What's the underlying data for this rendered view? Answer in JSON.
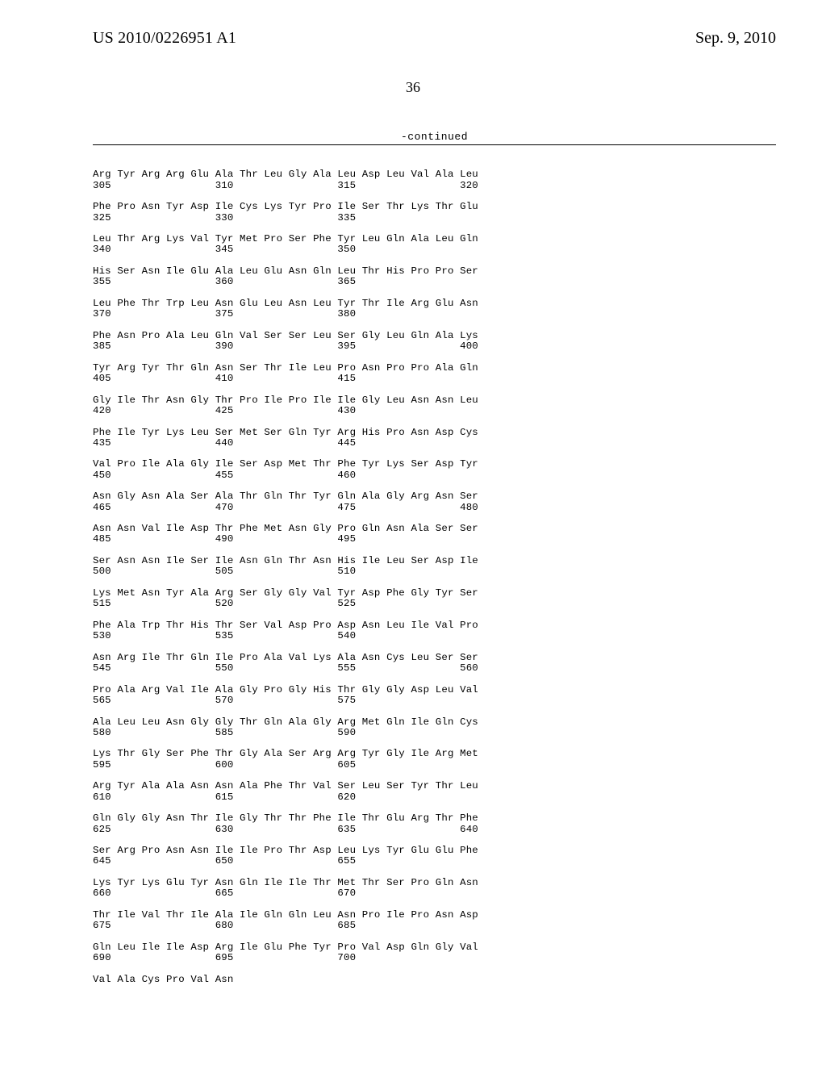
{
  "header": {
    "left": "US 2010/0226951 A1",
    "right": "Sep. 9, 2010"
  },
  "page_number": "36",
  "continued_label": "-continued",
  "sequence_text": "Arg Tyr Arg Arg Glu Ala Thr Leu Gly Ala Leu Asp Leu Val Ala Leu\n305                 310                 315                 320\n\nPhe Pro Asn Tyr Asp Ile Cys Lys Tyr Pro Ile Ser Thr Lys Thr Glu\n325                 330                 335\n\nLeu Thr Arg Lys Val Tyr Met Pro Ser Phe Tyr Leu Gln Ala Leu Gln\n340                 345                 350\n\nHis Ser Asn Ile Glu Ala Leu Glu Asn Gln Leu Thr His Pro Pro Ser\n355                 360                 365\n\nLeu Phe Thr Trp Leu Asn Glu Leu Asn Leu Tyr Thr Ile Arg Glu Asn\n370                 375                 380\n\nPhe Asn Pro Ala Leu Gln Val Ser Ser Leu Ser Gly Leu Gln Ala Lys\n385                 390                 395                 400\n\nTyr Arg Tyr Thr Gln Asn Ser Thr Ile Leu Pro Asn Pro Pro Ala Gln\n405                 410                 415\n\nGly Ile Thr Asn Gly Thr Pro Ile Pro Ile Ile Gly Leu Asn Asn Leu\n420                 425                 430\n\nPhe Ile Tyr Lys Leu Ser Met Ser Gln Tyr Arg His Pro Asn Asp Cys\n435                 440                 445\n\nVal Pro Ile Ala Gly Ile Ser Asp Met Thr Phe Tyr Lys Ser Asp Tyr\n450                 455                 460\n\nAsn Gly Asn Ala Ser Ala Thr Gln Thr Tyr Gln Ala Gly Arg Asn Ser\n465                 470                 475                 480\n\nAsn Asn Val Ile Asp Thr Phe Met Asn Gly Pro Gln Asn Ala Ser Ser\n485                 490                 495\n\nSer Asn Asn Ile Ser Ile Asn Gln Thr Asn His Ile Leu Ser Asp Ile\n500                 505                 510\n\nLys Met Asn Tyr Ala Arg Ser Gly Gly Val Tyr Asp Phe Gly Tyr Ser\n515                 520                 525\n\nPhe Ala Trp Thr His Thr Ser Val Asp Pro Asp Asn Leu Ile Val Pro\n530                 535                 540\n\nAsn Arg Ile Thr Gln Ile Pro Ala Val Lys Ala Asn Cys Leu Ser Ser\n545                 550                 555                 560\n\nPro Ala Arg Val Ile Ala Gly Pro Gly His Thr Gly Gly Asp Leu Val\n565                 570                 575\n\nAla Leu Leu Asn Gly Gly Thr Gln Ala Gly Arg Met Gln Ile Gln Cys\n580                 585                 590\n\nLys Thr Gly Ser Phe Thr Gly Ala Ser Arg Arg Tyr Gly Ile Arg Met\n595                 600                 605\n\nArg Tyr Ala Ala Asn Asn Ala Phe Thr Val Ser Leu Ser Tyr Thr Leu\n610                 615                 620\n\nGln Gly Gly Asn Thr Ile Gly Thr Thr Phe Ile Thr Glu Arg Thr Phe\n625                 630                 635                 640\n\nSer Arg Pro Asn Asn Ile Ile Pro Thr Asp Leu Lys Tyr Glu Glu Phe\n645                 650                 655\n\nLys Tyr Lys Glu Tyr Asn Gln Ile Ile Thr Met Thr Ser Pro Gln Asn\n660                 665                 670\n\nThr Ile Val Thr Ile Ala Ile Gln Gln Leu Asn Pro Ile Pro Asn Asp\n675                 680                 685\n\nGln Leu Ile Ile Asp Arg Ile Glu Phe Tyr Pro Val Asp Gln Gly Val\n690                 695                 700\n\nVal Ala Cys Pro Val Asn"
}
